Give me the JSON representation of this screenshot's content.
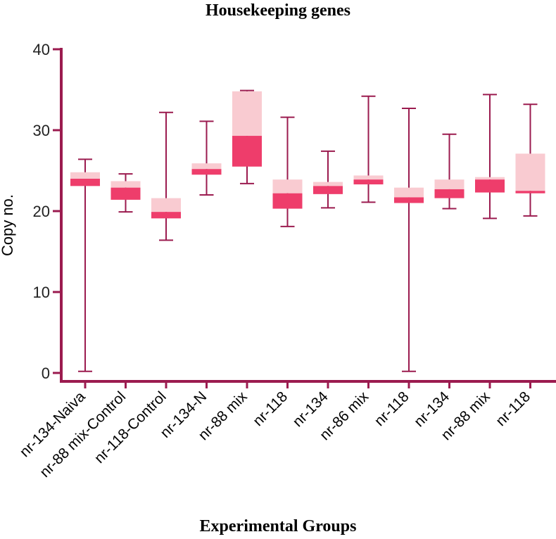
{
  "chart_data": {
    "type": "box",
    "title": "Housekeeping genes",
    "xlabel": "Experimental Groups",
    "ylabel": "Copy no.",
    "ylim": [
      0,
      40
    ],
    "yticks": [
      0,
      10,
      20,
      30,
      40
    ],
    "colors": {
      "axis": "#9b1b4f",
      "whisker": "#9b1b4f",
      "upper_box": "#f9cbd1",
      "lower_box": "#ee3d6b"
    },
    "categories": [
      "nr-134-Naiva",
      "nr-88 mix-Control",
      "nr-118-Control",
      "nr-134-N",
      "nr-88 mix",
      "nr-118",
      "nr-134",
      "nr-86 mix",
      "nr-118",
      "nr-134",
      "nr-88 mix",
      "nr-118"
    ],
    "boxes": [
      {
        "min": 0.2,
        "q1": 23.1,
        "median": 24.0,
        "q3": 24.8,
        "max": 26.4
      },
      {
        "min": 19.9,
        "q1": 21.4,
        "median": 22.9,
        "q3": 23.7,
        "max": 24.6
      },
      {
        "min": 16.4,
        "q1": 19.1,
        "median": 19.9,
        "q3": 21.6,
        "max": 32.2
      },
      {
        "min": 22.0,
        "q1": 24.5,
        "median": 25.2,
        "q3": 25.9,
        "max": 31.1
      },
      {
        "min": 23.4,
        "q1": 25.5,
        "median": 29.3,
        "q3": 34.8,
        "max": 34.9
      },
      {
        "min": 18.1,
        "q1": 20.3,
        "median": 22.2,
        "q3": 23.9,
        "max": 31.6
      },
      {
        "min": 20.4,
        "q1": 22.1,
        "median": 23.1,
        "q3": 23.6,
        "max": 27.4
      },
      {
        "min": 21.1,
        "q1": 23.3,
        "median": 23.9,
        "q3": 24.4,
        "max": 34.2
      },
      {
        "min": 0.2,
        "q1": 21.0,
        "median": 21.7,
        "q3": 22.9,
        "max": 32.7
      },
      {
        "min": 20.3,
        "q1": 21.6,
        "median": 22.7,
        "q3": 23.9,
        "max": 29.5
      },
      {
        "min": 19.1,
        "q1": 22.3,
        "median": 23.9,
        "q3": 24.2,
        "max": 34.4
      },
      {
        "min": 19.4,
        "q1": 22.2,
        "median": 22.5,
        "q3": 27.1,
        "max": 33.2
      }
    ]
  }
}
